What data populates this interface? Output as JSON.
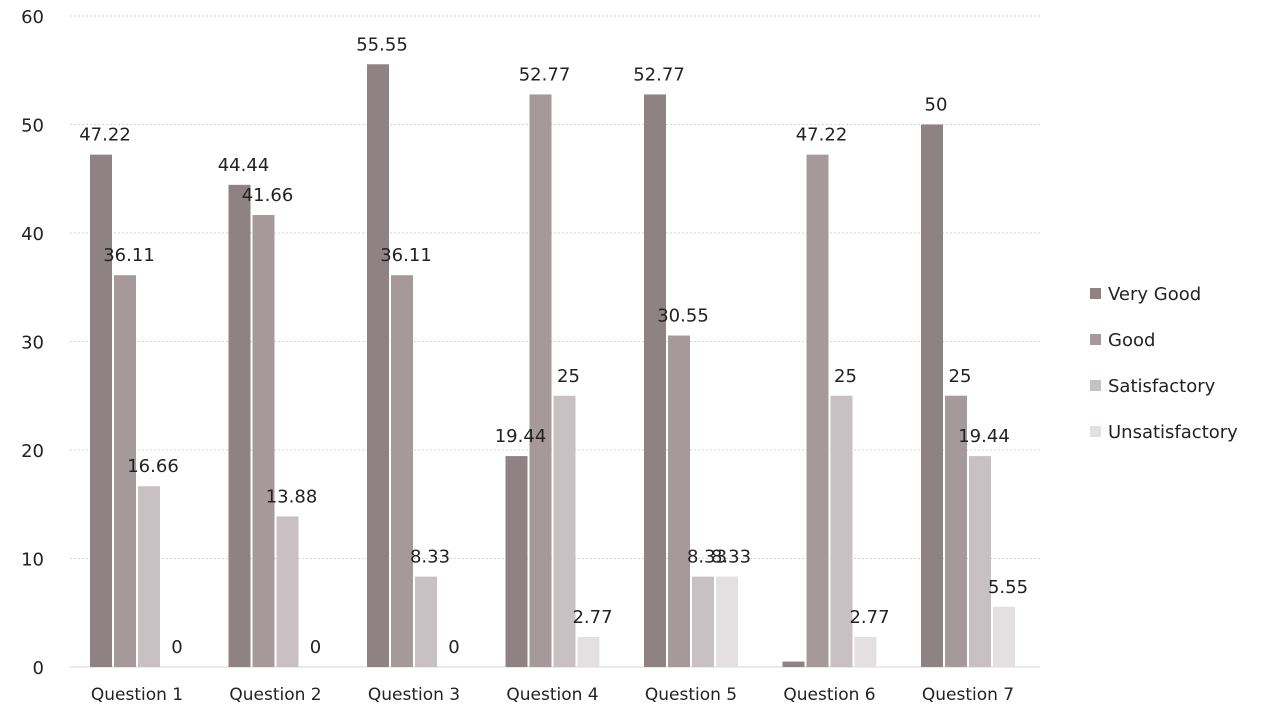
{
  "chart_data": {
    "type": "bar",
    "categories": [
      "Question 1",
      "Question 2",
      "Question 3",
      "Question 4",
      "Question 5",
      "Question 6",
      "Question 7"
    ],
    "series": [
      {
        "name": "Very Good",
        "values": [
          47.22,
          44.44,
          55.55,
          19.44,
          52.77,
          0.5,
          50
        ],
        "labels": [
          "47.22",
          "44.44",
          "55.55",
          "19.44",
          "52.77",
          "",
          "50"
        ],
        "color": "#8e8285"
      },
      {
        "name": "Good",
        "values": [
          36.11,
          41.66,
          36.11,
          52.77,
          30.55,
          47.22,
          25
        ],
        "labels": [
          "36.11",
          "41.66",
          "36.11",
          "52.77",
          "30.55",
          "47.22",
          "25"
        ],
        "color": "#a5999b"
      },
      {
        "name": "Satisfactory",
        "values": [
          16.66,
          13.88,
          8.33,
          25,
          8.33,
          25,
          19.44
        ],
        "labels": [
          "16.66",
          "13.88",
          "8.33",
          "25",
          "8.33",
          "25",
          "19.44"
        ],
        "color": "#c8c0c2"
      },
      {
        "name": "Unsatisfactory",
        "values": [
          0,
          0,
          0,
          2.77,
          8.33,
          2.77,
          5.55
        ],
        "labels": [
          "0",
          "0",
          "0",
          "2.77",
          "8.33",
          "2.77",
          "5.55"
        ],
        "color": "#e4e0e1"
      }
    ],
    "yticks": [
      "0",
      "10",
      "20",
      "30",
      "40",
      "50",
      "60"
    ],
    "ylim": [
      0,
      60
    ],
    "grid": true,
    "legend": "right",
    "title": "",
    "xlabel": "",
    "ylabel": ""
  }
}
